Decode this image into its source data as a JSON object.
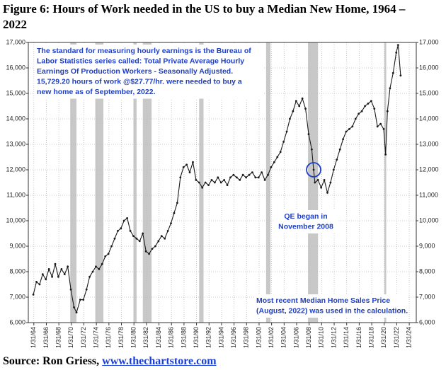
{
  "title": "Figure 6: Hours of Work needed in the US to buy a Median New Home, 1964 – 2022",
  "source": "Source: Ron Griess, ",
  "source_link": "www.thechartstore.com",
  "chart_data": {
    "type": "line",
    "color": "#1a1a1a",
    "grid": true,
    "shade_color": "#c8c8c8",
    "xlim": [
      1963.2,
      2025.2
    ],
    "ylim": [
      6000,
      17000
    ],
    "yticks": [
      {
        "value": 6000,
        "label": "6,000"
      },
      {
        "value": 7000,
        "label": "7,000"
      },
      {
        "value": 8000,
        "label": "8,000"
      },
      {
        "value": 9000,
        "label": "9,000"
      },
      {
        "value": 10000,
        "label": "10,000"
      },
      {
        "value": 11000,
        "label": "11,000"
      },
      {
        "value": 12000,
        "label": "12,000"
      },
      {
        "value": 13000,
        "label": "13,000"
      },
      {
        "value": 14000,
        "label": "14,000"
      },
      {
        "value": 15000,
        "label": "15,000"
      },
      {
        "value": 16000,
        "label": "16,000"
      },
      {
        "value": 17000,
        "label": "17,000"
      }
    ],
    "xticks": [
      {
        "value": 1964.08,
        "label": "1/31/64"
      },
      {
        "value": 1966.08,
        "label": "1/31/66"
      },
      {
        "value": 1968.08,
        "label": "1/31/68"
      },
      {
        "value": 1970.08,
        "label": "1/31/70"
      },
      {
        "value": 1972.08,
        "label": "1/31/72"
      },
      {
        "value": 1974.08,
        "label": "1/31/74"
      },
      {
        "value": 1976.08,
        "label": "1/31/76"
      },
      {
        "value": 1978.08,
        "label": "1/31/78"
      },
      {
        "value": 1980.08,
        "label": "1/31/80"
      },
      {
        "value": 1982.08,
        "label": "1/31/82"
      },
      {
        "value": 1984.08,
        "label": "1/31/84"
      },
      {
        "value": 1986.08,
        "label": "1/31/86"
      },
      {
        "value": 1988.08,
        "label": "1/31/88"
      },
      {
        "value": 1990.08,
        "label": "1/31/90"
      },
      {
        "value": 1992.08,
        "label": "1/31/92"
      },
      {
        "value": 1994.08,
        "label": "1/31/94"
      },
      {
        "value": 1996.08,
        "label": "1/31/96"
      },
      {
        "value": 1998.08,
        "label": "1/31/98"
      },
      {
        "value": 2000.08,
        "label": "1/31/00"
      },
      {
        "value": 2002.08,
        "label": "1/31/02"
      },
      {
        "value": 2004.08,
        "label": "1/31/04"
      },
      {
        "value": 2006.08,
        "label": "1/31/06"
      },
      {
        "value": 2008.08,
        "label": "1/31/08"
      },
      {
        "value": 2010.08,
        "label": "1/31/10"
      },
      {
        "value": 2012.08,
        "label": "1/31/12"
      },
      {
        "value": 2014.08,
        "label": "1/31/14"
      },
      {
        "value": 2016.08,
        "label": "1/31/16"
      },
      {
        "value": 2018.08,
        "label": "1/31/18"
      },
      {
        "value": 2020.08,
        "label": "1/31/20"
      },
      {
        "value": 2022.08,
        "label": "1/31/22"
      },
      {
        "value": 2024.08,
        "label": "1/31/24"
      }
    ],
    "shaded_periods": [
      [
        1969.9,
        1970.9
      ],
      [
        1973.9,
        1975.2
      ],
      [
        1980.0,
        1980.5
      ],
      [
        1981.5,
        1982.9
      ],
      [
        1990.5,
        1991.2
      ],
      [
        2001.2,
        2001.9
      ],
      [
        2007.9,
        2009.5
      ],
      [
        2020.1,
        2020.4
      ]
    ],
    "x": [
      1964,
      1964.5,
      1965,
      1965.5,
      1966,
      1966.5,
      1967,
      1967.5,
      1968,
      1968.5,
      1969,
      1969.5,
      1970,
      1970.5,
      1970.9,
      1971.5,
      1972,
      1972.5,
      1973,
      1973.5,
      1974,
      1974.5,
      1975,
      1975.5,
      1976,
      1976.5,
      1977,
      1977.5,
      1978,
      1978.5,
      1979,
      1979.5,
      1980,
      1980.5,
      1981,
      1981.5,
      1982,
      1982.5,
      1983,
      1983.5,
      1984,
      1984.5,
      1985,
      1985.5,
      1986,
      1986.5,
      1987,
      1987.5,
      1988,
      1988.5,
      1989,
      1989.5,
      1990,
      1990.5,
      1991,
      1991.5,
      1992,
      1992.5,
      1993,
      1993.5,
      1994,
      1994.5,
      1995,
      1995.5,
      1996,
      1996.5,
      1997,
      1997.5,
      1998,
      1998.5,
      1999,
      1999.5,
      2000,
      2000.5,
      2001,
      2001.5,
      2002,
      2002.5,
      2003,
      2003.5,
      2004,
      2004.5,
      2005,
      2005.5,
      2006,
      2006.5,
      2007,
      2007.5,
      2008,
      2008.5,
      2008.8,
      2009,
      2009.5,
      2010,
      2010.5,
      2011,
      2011.5,
      2012,
      2012.5,
      2013,
      2013.5,
      2014,
      2014.5,
      2015,
      2015.5,
      2016,
      2016.5,
      2017,
      2017.5,
      2018,
      2018.5,
      2019,
      2019.5,
      2020,
      2020.3,
      2020.6,
      2021,
      2021.5,
      2022,
      2022.3,
      2022.7
    ],
    "values": [
      7100,
      7600,
      7500,
      7900,
      7700,
      8100,
      7800,
      8300,
      7800,
      8100,
      7900,
      8200,
      7300,
      6600,
      6400,
      6900,
      6900,
      7300,
      7800,
      8000,
      8200,
      8100,
      8300,
      8600,
      8700,
      9000,
      9300,
      9600,
      9700,
      10000,
      10100,
      9600,
      9400,
      9300,
      9200,
      9500,
      8800,
      8700,
      8900,
      9000,
      9200,
      9400,
      9300,
      9600,
      9900,
      10300,
      10700,
      11700,
      12100,
      12200,
      11900,
      12300,
      11600,
      11500,
      11300,
      11500,
      11400,
      11600,
      11500,
      11700,
      11500,
      11600,
      11400,
      11700,
      11800,
      11700,
      11600,
      11800,
      11700,
      11800,
      11900,
      11700,
      11700,
      11900,
      11600,
      11800,
      12100,
      12300,
      12500,
      12700,
      13100,
      13500,
      14000,
      14300,
      14700,
      14500,
      14800,
      14400,
      13400,
      12800,
      12000,
      11500,
      11600,
      11300,
      11600,
      11100,
      11500,
      12000,
      12400,
      12800,
      13200,
      13500,
      13600,
      13700,
      14000,
      14200,
      14300,
      14500,
      14600,
      14700,
      14400,
      13700,
      13800,
      13600,
      12600,
      14300,
      15200,
      15800,
      16600,
      16900,
      15700
    ],
    "highlight": {
      "x": 2008.8,
      "y": 12000
    },
    "annotations": [
      {
        "lines": [
          "The standard for measuring hourly earnings is the Bureau of",
          "Labor Statistics series called:  Total Private Average Hourly",
          "Earnings Of Production Workers - Seasonally Adjusted.",
          "15,729.20 hours of work @$27.77/hr. were needed to buy a",
          "new home as of September, 2022."
        ]
      },
      {
        "lines": [
          "QE began in",
          "November 2008"
        ]
      },
      {
        "lines": [
          "Most recent Median Home Sales Price",
          "(August, 2022) was used in the calculation."
        ]
      }
    ]
  }
}
